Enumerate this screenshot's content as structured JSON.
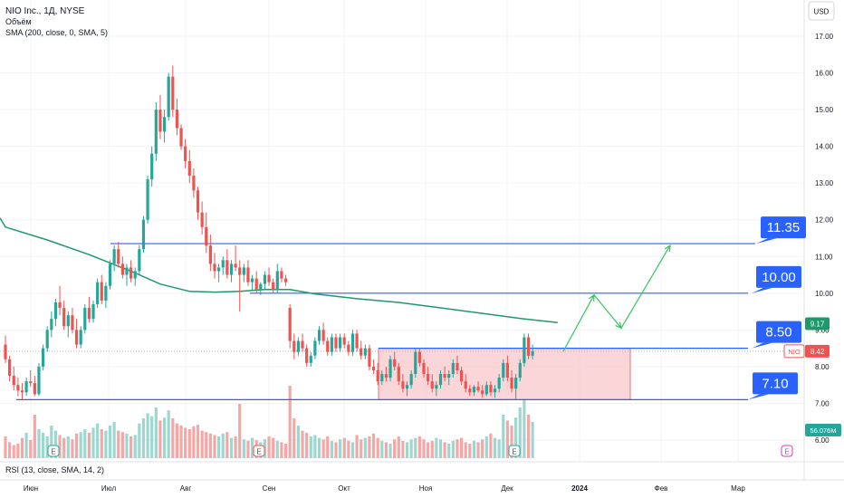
{
  "header": {
    "symbol_line": "NIO Inc., 1Д, NYSE",
    "volume_line": "Объём",
    "sma_line": "SMA (200, close, 0, SMA, 5)"
  },
  "currency_button": "USD",
  "rsi_label": "RSI (13, close, SMA, 14, 2)",
  "colors": {
    "up": "#26a69a",
    "down": "#ef5350",
    "sma": "#1e9a6a",
    "level_line": "#2962ff",
    "box_fill": "#f8c8cc",
    "box_stroke": "#e57373",
    "projection": "#34c759"
  },
  "chart_data": {
    "type": "candlestick",
    "x_axis_labels": [
      "Июн",
      "Июл",
      "Авг",
      "Сен",
      "Окт",
      "Ноя",
      "Дек",
      "2024",
      "Фев",
      "Мар"
    ],
    "y_ticks": [
      "17.00",
      "16.00",
      "15.00",
      "14.00",
      "13.00",
      "12.00",
      "11.00",
      "10.00",
      "9.00",
      "8.00",
      "7.00",
      "6.00"
    ],
    "ylim": [
      5.6,
      17.3
    ],
    "price_badges": [
      {
        "label": "9.17",
        "value": 9.17,
        "color": "#1e9a6a"
      },
      {
        "label": "NIO",
        "value": 8.42,
        "price": "8.42",
        "color": "#ef5350"
      }
    ],
    "volume_badge": "56.076M",
    "levels": [
      {
        "label": "11.35",
        "value": 11.35
      },
      {
        "label": "10.00",
        "value": 10.0
      },
      {
        "label": "8.50",
        "value": 8.5
      },
      {
        "label": "7.10",
        "value": 7.1
      }
    ],
    "range_box": {
      "low": 7.1,
      "high": 8.5
    },
    "earnings_markers": [
      "E",
      "E",
      "E",
      "E"
    ],
    "projection_path": [
      8.42,
      9.95,
      9.05,
      11.3
    ],
    "candles": [
      [
        8.6,
        8.85,
        8.1,
        8.2
      ],
      [
        8.2,
        8.3,
        7.6,
        7.75
      ],
      [
        7.75,
        8.0,
        7.35,
        7.5
      ],
      [
        7.5,
        7.7,
        7.2,
        7.35
      ],
      [
        7.35,
        7.55,
        7.1,
        7.3
      ],
      [
        7.3,
        7.7,
        7.2,
        7.6
      ],
      [
        7.6,
        7.9,
        7.45,
        7.55
      ],
      [
        7.55,
        7.75,
        7.2,
        7.25
      ],
      [
        7.25,
        8.1,
        7.2,
        8.0
      ],
      [
        8.0,
        8.6,
        7.9,
        8.5
      ],
      [
        8.5,
        9.1,
        8.4,
        9.0
      ],
      [
        9.0,
        9.5,
        8.8,
        9.3
      ],
      [
        9.3,
        9.85,
        9.1,
        9.75
      ],
      [
        9.75,
        10.2,
        9.4,
        9.6
      ],
      [
        9.6,
        9.8,
        9.0,
        9.1
      ],
      [
        9.1,
        9.5,
        8.8,
        9.4
      ],
      [
        9.4,
        9.6,
        8.9,
        9.0
      ],
      [
        9.0,
        9.3,
        8.5,
        8.6
      ],
      [
        8.6,
        9.1,
        8.5,
        9.0
      ],
      [
        9.0,
        9.7,
        8.9,
        9.6
      ],
      [
        9.6,
        9.9,
        9.2,
        9.3
      ],
      [
        9.3,
        9.8,
        9.2,
        9.7
      ],
      [
        9.7,
        10.4,
        9.6,
        10.3
      ],
      [
        10.3,
        10.5,
        9.7,
        9.8
      ],
      [
        9.8,
        10.3,
        9.6,
        10.2
      ],
      [
        10.2,
        10.9,
        10.1,
        10.8
      ],
      [
        10.8,
        11.3,
        10.6,
        11.2
      ],
      [
        11.2,
        11.4,
        10.7,
        10.8
      ],
      [
        10.8,
        11.0,
        10.4,
        10.5
      ],
      [
        10.5,
        10.8,
        10.2,
        10.7
      ],
      [
        10.7,
        10.9,
        10.3,
        10.4
      ],
      [
        10.4,
        10.7,
        10.2,
        10.6
      ],
      [
        10.6,
        11.3,
        10.5,
        11.2
      ],
      [
        11.2,
        12.1,
        11.1,
        12.0
      ],
      [
        12.0,
        13.2,
        11.9,
        13.1
      ],
      [
        13.1,
        14.0,
        12.9,
        13.8
      ],
      [
        13.8,
        15.2,
        13.6,
        15.0
      ],
      [
        15.0,
        15.4,
        14.2,
        14.4
      ],
      [
        14.4,
        15.0,
        14.1,
        14.8
      ],
      [
        14.8,
        16.0,
        14.7,
        15.9
      ],
      [
        15.9,
        16.2,
        14.8,
        15.0
      ],
      [
        15.0,
        15.3,
        14.3,
        14.5
      ],
      [
        14.5,
        14.6,
        13.9,
        14.0
      ],
      [
        14.0,
        14.2,
        13.4,
        13.6
      ],
      [
        13.6,
        13.9,
        13.0,
        13.2
      ],
      [
        13.2,
        13.4,
        12.6,
        12.8
      ],
      [
        12.8,
        12.9,
        12.0,
        12.2
      ],
      [
        12.2,
        12.5,
        11.6,
        11.8
      ],
      [
        11.8,
        12.2,
        11.1,
        11.3
      ],
      [
        11.3,
        11.6,
        10.6,
        10.8
      ],
      [
        10.8,
        11.1,
        10.4,
        10.6
      ],
      [
        10.6,
        10.8,
        10.3,
        10.7
      ],
      [
        10.7,
        11.0,
        10.5,
        10.9
      ],
      [
        10.9,
        11.2,
        10.4,
        10.5
      ],
      [
        10.5,
        10.9,
        10.3,
        10.8
      ],
      [
        10.8,
        11.3,
        10.6,
        10.7
      ],
      [
        10.7,
        10.9,
        9.5,
        10.5
      ],
      [
        10.5,
        10.8,
        10.3,
        10.7
      ],
      [
        10.7,
        10.9,
        10.2,
        10.3
      ],
      [
        10.3,
        10.5,
        10.1,
        10.4
      ],
      [
        10.4,
        10.6,
        10.0,
        10.1
      ],
      [
        10.1,
        10.3,
        9.95,
        10.25
      ],
      [
        10.25,
        10.6,
        10.1,
        10.5
      ],
      [
        10.5,
        10.7,
        10.2,
        10.3
      ],
      [
        10.3,
        10.4,
        10.0,
        10.1
      ],
      [
        10.1,
        10.8,
        10.0,
        10.6
      ],
      [
        10.6,
        10.7,
        10.3,
        10.4
      ],
      [
        10.4,
        10.5,
        10.2,
        10.3
      ],
      [
        9.6,
        9.7,
        8.5,
        8.7
      ],
      [
        8.7,
        8.9,
        8.2,
        8.4
      ],
      [
        8.4,
        8.8,
        8.3,
        8.7
      ],
      [
        8.7,
        8.9,
        8.4,
        8.5
      ],
      [
        8.5,
        8.6,
        8.0,
        8.1
      ],
      [
        8.1,
        8.4,
        8.0,
        8.3
      ],
      [
        8.3,
        8.8,
        8.2,
        8.7
      ],
      [
        8.7,
        9.1,
        8.6,
        9.0
      ],
      [
        9.0,
        9.2,
        8.6,
        8.7
      ],
      [
        8.7,
        8.8,
        8.3,
        8.4
      ],
      [
        8.4,
        8.9,
        8.3,
        8.8
      ],
      [
        8.8,
        8.9,
        8.4,
        8.5
      ],
      [
        8.5,
        8.9,
        8.4,
        8.8
      ],
      [
        8.8,
        8.9,
        8.5,
        8.6
      ],
      [
        8.6,
        8.7,
        8.3,
        8.4
      ],
      [
        8.4,
        9.0,
        8.3,
        8.9
      ],
      [
        8.9,
        9.0,
        8.4,
        8.5
      ],
      [
        8.5,
        8.7,
        8.2,
        8.3
      ],
      [
        8.3,
        8.6,
        8.2,
        8.5
      ],
      [
        8.5,
        8.6,
        7.9,
        8.0
      ],
      [
        8.0,
        8.2,
        7.8,
        7.9
      ],
      [
        7.9,
        8.1,
        7.5,
        7.6
      ],
      [
        7.6,
        7.9,
        7.5,
        7.8
      ],
      [
        7.8,
        8.0,
        7.6,
        7.7
      ],
      [
        7.7,
        8.3,
        7.6,
        8.2
      ],
      [
        8.2,
        8.4,
        7.9,
        8.0
      ],
      [
        8.0,
        8.1,
        7.5,
        7.6
      ],
      [
        7.6,
        7.8,
        7.3,
        7.4
      ],
      [
        7.4,
        7.6,
        7.2,
        7.5
      ],
      [
        7.5,
        7.9,
        7.4,
        7.8
      ],
      [
        7.8,
        8.5,
        7.7,
        8.4
      ],
      [
        8.4,
        8.5,
        8.0,
        8.1
      ],
      [
        8.1,
        8.2,
        7.7,
        7.8
      ],
      [
        7.8,
        8.0,
        7.5,
        7.6
      ],
      [
        7.6,
        7.8,
        7.3,
        7.4
      ],
      [
        7.4,
        7.6,
        7.2,
        7.5
      ],
      [
        7.5,
        7.9,
        7.4,
        7.8
      ],
      [
        7.8,
        8.0,
        7.6,
        7.7
      ],
      [
        7.7,
        7.9,
        7.5,
        7.8
      ],
      [
        7.8,
        8.2,
        7.7,
        8.1
      ],
      [
        8.1,
        8.3,
        7.8,
        7.9
      ],
      [
        7.9,
        8.0,
        7.5,
        7.6
      ],
      [
        7.6,
        7.8,
        7.3,
        7.4
      ],
      [
        7.4,
        7.5,
        7.2,
        7.3
      ],
      [
        7.3,
        7.5,
        7.2,
        7.45
      ],
      [
        7.45,
        7.6,
        7.3,
        7.35
      ],
      [
        7.35,
        7.5,
        7.15,
        7.25
      ],
      [
        7.25,
        7.6,
        7.2,
        7.5
      ],
      [
        7.5,
        7.6,
        7.2,
        7.3
      ],
      [
        7.3,
        7.5,
        7.15,
        7.4
      ],
      [
        7.4,
        7.8,
        7.3,
        7.7
      ],
      [
        7.7,
        8.2,
        7.6,
        8.1
      ],
      [
        8.1,
        8.3,
        7.6,
        7.7
      ],
      [
        7.7,
        7.9,
        7.3,
        7.4
      ],
      [
        7.4,
        7.8,
        7.1,
        7.7
      ],
      [
        7.7,
        8.2,
        7.6,
        8.1
      ],
      [
        8.1,
        8.9,
        8.0,
        8.8
      ],
      [
        8.8,
        8.9,
        8.2,
        8.3
      ],
      [
        8.3,
        8.6,
        8.2,
        8.42
      ]
    ],
    "sma_points": [
      [
        0,
        11.8
      ],
      [
        10,
        11.45
      ],
      [
        20,
        11.05
      ],
      [
        30,
        10.6
      ],
      [
        37,
        10.25
      ],
      [
        44,
        10.05
      ],
      [
        50,
        10.03
      ],
      [
        56,
        10.05
      ],
      [
        62,
        10.1
      ],
      [
        68,
        10.1
      ],
      [
        74,
        9.98
      ],
      [
        84,
        9.85
      ],
      [
        94,
        9.75
      ],
      [
        104,
        9.6
      ],
      [
        114,
        9.45
      ],
      [
        124,
        9.3
      ],
      [
        132,
        9.2
      ]
    ],
    "volume_max": 100,
    "volume": [
      30,
      22,
      18,
      20,
      28,
      35,
      25,
      60,
      40,
      35,
      30,
      45,
      38,
      32,
      28,
      30,
      26,
      34,
      36,
      40,
      35,
      42,
      48,
      40,
      38,
      45,
      50,
      38,
      36,
      34,
      30,
      32,
      48,
      55,
      62,
      58,
      70,
      52,
      56,
      66,
      55,
      48,
      45,
      42,
      40,
      44,
      46,
      38,
      36,
      34,
      32,
      30,
      34,
      36,
      28,
      30,
      75,
      26,
      24,
      28,
      25,
      22,
      26,
      30,
      28,
      24,
      22,
      20,
      100,
      55,
      45,
      38,
      35,
      30,
      32,
      28,
      26,
      30,
      24,
      22,
      26,
      28,
      24,
      22,
      32,
      26,
      28,
      30,
      34,
      28,
      24,
      22,
      20,
      26,
      30,
      24,
      22,
      26,
      28,
      30,
      26,
      22,
      24,
      28,
      26,
      22,
      20,
      24,
      26,
      28,
      22,
      20,
      24,
      22,
      26,
      30,
      34,
      28,
      26,
      60,
      52,
      45,
      56,
      70,
      80,
      60,
      50
    ],
    "volume_colors_up": [
      0,
      0,
      0,
      0,
      0,
      1,
      0,
      0,
      1,
      1,
      1,
      1,
      1,
      0,
      0,
      1,
      0,
      0,
      1,
      1,
      0,
      1,
      1,
      0,
      1,
      1,
      1,
      0,
      0,
      1,
      0,
      1,
      1,
      1,
      1,
      1,
      1,
      0,
      1,
      1,
      0,
      0,
      0,
      0,
      0,
      0,
      0,
      0,
      0,
      0,
      0,
      1,
      1,
      0,
      1,
      0,
      0,
      1,
      0,
      1,
      0,
      1,
      1,
      0,
      0,
      1,
      0,
      0,
      0,
      0,
      1,
      0,
      0,
      1,
      1,
      1,
      0,
      0,
      1,
      0,
      1,
      0,
      0,
      1,
      0,
      0,
      1,
      0,
      0,
      0,
      1,
      0,
      1,
      0,
      0,
      0,
      1,
      1,
      1,
      0,
      0,
      0,
      0,
      1,
      1,
      0,
      1,
      1,
      0,
      0,
      0,
      0,
      1,
      0,
      0,
      1,
      0,
      1,
      1,
      1,
      0,
      0,
      1,
      1,
      1,
      0,
      1
    ]
  }
}
